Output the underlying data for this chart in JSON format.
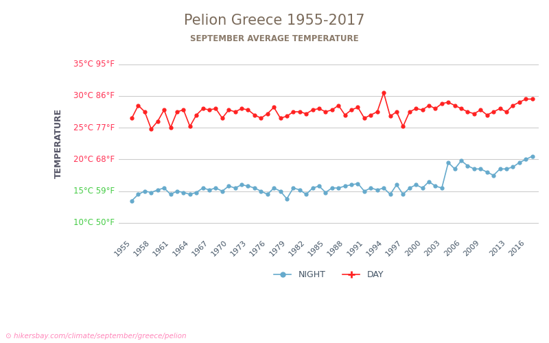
{
  "title": "Pelion Greece 1955-2017",
  "subtitle": "SEPTEMBER AVERAGE TEMPERATURE",
  "ylabel": "TEMPERATURE",
  "url_text": "hikersbay.com/climate/september/greece/pelion",
  "title_color": "#7a6a5a",
  "subtitle_color": "#8a7a6a",
  "ylabel_color": "#555566",
  "tick_label_color_red": "#ff3355",
  "tick_label_color_green": "#44cc44",
  "bg_color": "#ffffff",
  "grid_color": "#cccccc",
  "day_color": "#ff2222",
  "night_color": "#66aacc",
  "years": [
    1955,
    1956,
    1957,
    1958,
    1959,
    1960,
    1961,
    1962,
    1963,
    1964,
    1965,
    1966,
    1967,
    1968,
    1969,
    1970,
    1971,
    1972,
    1973,
    1974,
    1975,
    1976,
    1977,
    1978,
    1979,
    1980,
    1981,
    1982,
    1983,
    1984,
    1985,
    1986,
    1987,
    1988,
    1989,
    1990,
    1991,
    1992,
    1993,
    1994,
    1995,
    1996,
    1997,
    1998,
    1999,
    2000,
    2001,
    2002,
    2003,
    2004,
    2005,
    2006,
    2007,
    2008,
    2009,
    2010,
    2011,
    2012,
    2013,
    2014,
    2015,
    2016,
    2017
  ],
  "day_temps": [
    26.5,
    28.5,
    27.5,
    24.8,
    26.0,
    27.8,
    25.0,
    27.5,
    27.8,
    25.2,
    27.0,
    28.0,
    27.8,
    28.0,
    26.5,
    27.8,
    27.5,
    28.0,
    27.8,
    27.0,
    26.5,
    27.2,
    28.2,
    26.5,
    26.8,
    27.5,
    27.5,
    27.2,
    27.8,
    28.0,
    27.5,
    27.8,
    28.5,
    27.0,
    27.8,
    28.2,
    26.5,
    27.0,
    27.5,
    30.5,
    26.8,
    27.5,
    25.2,
    27.5,
    28.0,
    27.8,
    28.5,
    28.0,
    28.8,
    29.0,
    28.5,
    28.0,
    27.5,
    27.2,
    27.8,
    27.0,
    27.5,
    28.0,
    27.5,
    28.5,
    29.0,
    29.5,
    29.5
  ],
  "night_temps": [
    13.5,
    14.5,
    15.0,
    14.8,
    15.2,
    15.5,
    14.5,
    15.0,
    14.8,
    14.5,
    14.8,
    15.5,
    15.2,
    15.5,
    15.0,
    15.8,
    15.5,
    16.0,
    15.8,
    15.5,
    15.0,
    14.5,
    15.5,
    15.0,
    13.8,
    15.5,
    15.2,
    14.5,
    15.5,
    15.8,
    14.8,
    15.5,
    15.5,
    15.8,
    16.0,
    16.2,
    15.0,
    15.5,
    15.2,
    15.5,
    14.5,
    16.0,
    14.5,
    15.5,
    16.0,
    15.5,
    16.5,
    15.8,
    15.5,
    19.5,
    18.5,
    19.8,
    19.0,
    18.5,
    18.5,
    18.0,
    17.5,
    18.5,
    18.5,
    18.8,
    19.5,
    20.0,
    20.5
  ],
  "yticks_celsius": [
    10,
    15,
    20,
    25,
    30,
    35
  ],
  "yticks_fahrenheit": [
    50,
    59,
    68,
    77,
    86,
    95
  ],
  "ytick_colors": [
    "green",
    "green",
    "red",
    "red",
    "red",
    "red"
  ],
  "xtick_years": [
    1955,
    1958,
    1961,
    1964,
    1967,
    1970,
    1973,
    1976,
    1979,
    1982,
    1985,
    1988,
    1991,
    1994,
    1997,
    2000,
    2003,
    2006,
    2009,
    2013,
    2016
  ]
}
